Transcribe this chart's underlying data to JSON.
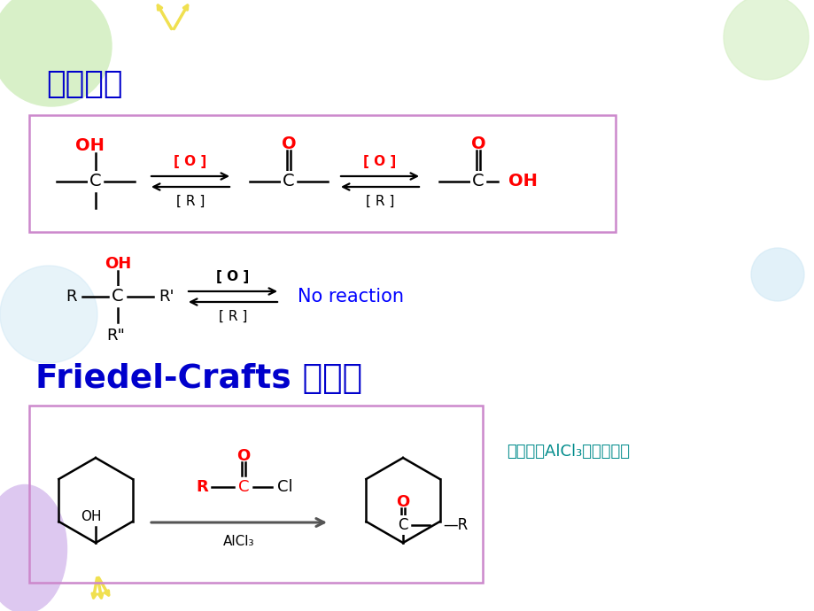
{
  "bg_color": "#ffffff",
  "title1": "醇的氧化",
  "title2": "Friedel-Crafts 酰基化",
  "title_color": "#0000cc",
  "red": "#ff0000",
  "black": "#000000",
  "blue_nr": "#0000ff",
  "teal": "#008b8b",
  "box_edge": "#cc88cc",
  "no_reaction": "No reaction",
  "note": "思考：无AlCl₃生成什么？",
  "green_deco": "#d8f0c8",
  "purple_deco": "#ddc8f0",
  "yellow_deco": "#f0e050",
  "light_blue_deco": "#d0e8f5"
}
